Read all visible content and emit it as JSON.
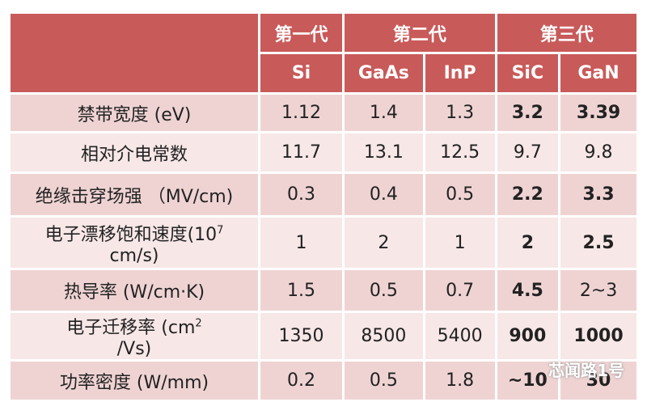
{
  "table": {
    "groups": [
      "第一代",
      "第二代",
      "第三代"
    ],
    "columns": [
      "Si",
      "GaAs",
      "InP",
      "SiC",
      "GaN"
    ],
    "rows": [
      {
        "label": {
          "text": "禁带宽度 (eV)"
        },
        "cells": [
          "1.12",
          "1.4",
          "1.3",
          "3.2",
          "3.39"
        ]
      },
      {
        "label": {
          "text": "相对介电常数"
        },
        "cells": [
          "11.7",
          "13.1",
          "12.5",
          "9.7",
          "9.8"
        ]
      },
      {
        "label": {
          "text": "绝缘击穿场强 （MV/cm)"
        },
        "cells": [
          "0.3",
          "0.4",
          "0.5",
          "2.2",
          "3.3"
        ]
      },
      {
        "label": {
          "text": "电子漂移饱和速度(10",
          "sup": "7",
          "tail": "cm/s)"
        },
        "cells": [
          "1",
          "2",
          "1",
          "2",
          "2.5"
        ]
      },
      {
        "label": {
          "text": "热导率 (W/cm·K)"
        },
        "cells": [
          "1.5",
          "0.5",
          "0.7",
          "4.5",
          "2~3"
        ]
      },
      {
        "label": {
          "text": "电子迁移率 (cm",
          "sup": "2",
          "tail": "/Vs)"
        },
        "cells": [
          "1350",
          "8500",
          "5400",
          "900",
          "1000"
        ]
      },
      {
        "label": {
          "text": "功率密度 (W/mm)"
        },
        "cells": [
          "0.2",
          "0.5",
          "1.8",
          "~10",
          "30"
        ]
      }
    ]
  },
  "watermark": "芯闻路1号"
}
